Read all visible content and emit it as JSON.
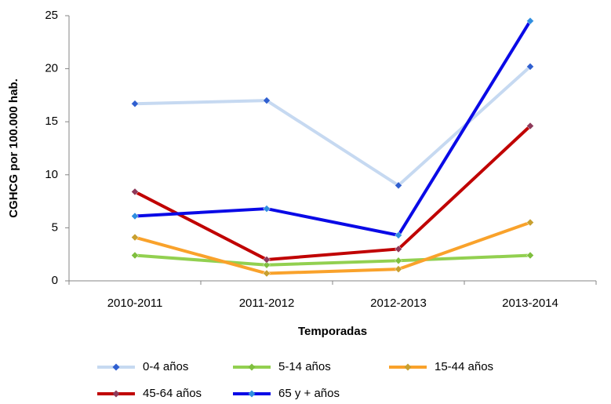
{
  "chart_data": {
    "type": "line",
    "x_label": "Temporadas",
    "y_label": "CGHCG por 100.000 hab.",
    "categories": [
      "2010-2011",
      "2011-2012",
      "2012-2013",
      "2013-2014"
    ],
    "series": [
      {
        "name": "0-4 años",
        "color": "#c6d9f1",
        "marker_color": "#2f5fd0",
        "values": [
          16.7,
          17.0,
          9.0,
          20.2
        ]
      },
      {
        "name": "5-14 años",
        "color": "#92d050",
        "marker_color": "#7fbf3f",
        "values": [
          2.4,
          1.5,
          1.9,
          2.4
        ]
      },
      {
        "name": "15-44 años",
        "color": "#f9a22b",
        "marker_color": "#c8a030",
        "values": [
          4.1,
          0.7,
          1.1,
          5.5
        ]
      },
      {
        "name": "45-64 años",
        "color": "#c00000",
        "marker_color": "#8e3a5a",
        "values": [
          8.4,
          2.0,
          3.0,
          14.6
        ]
      },
      {
        "name": "65 y + años",
        "color": "#0a0ae6",
        "marker_color": "#2f8fe0",
        "values": [
          6.1,
          6.8,
          4.3,
          24.5
        ]
      }
    ],
    "ylim": [
      0,
      25
    ],
    "yticks": [
      0,
      5,
      10,
      15,
      20,
      25
    ],
    "grid": false
  }
}
